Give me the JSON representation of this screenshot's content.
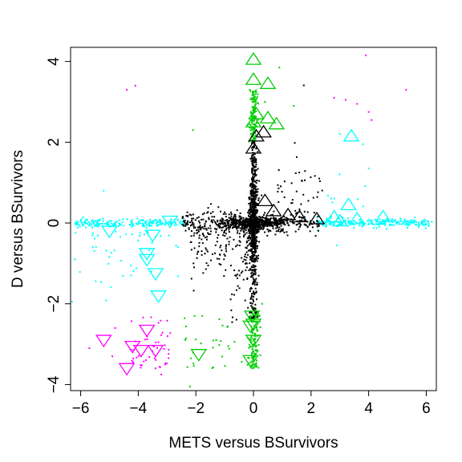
{
  "chart_data": {
    "type": "scatter",
    "title": "",
    "xlabel": "METS versus BSurvivors",
    "ylabel": "D versus BSurvivors",
    "xlim": [
      -6.35,
      6.35
    ],
    "ylim": [
      -4.15,
      4.35
    ],
    "xticks": [
      -6,
      -4,
      -2,
      0,
      2,
      4,
      6
    ],
    "xtick_labels": [
      "−6",
      "−4",
      "−2",
      "0",
      "2",
      "4",
      "6"
    ],
    "yticks": [
      -4,
      -2,
      0,
      2,
      4
    ],
    "ytick_labels": [
      "−4",
      "−2",
      "0",
      "2",
      "4"
    ],
    "grid": false,
    "legend": "none",
    "colors": {
      "black": "#000000",
      "cyan": "#00ffff",
      "green": "#00cd00",
      "magenta": "#ff00ff"
    },
    "series": [
      {
        "color": "cyan",
        "marker": "triangle-up",
        "points": [
          [
            3.4,
            2.15
          ],
          [
            2.8,
            0.15
          ],
          [
            3.0,
            0.05
          ],
          [
            3.3,
            0.45
          ],
          [
            4.5,
            0.15
          ],
          [
            3.6,
            0.1
          ]
        ]
      },
      {
        "color": "cyan",
        "marker": "triangle-down",
        "points": [
          [
            -2.9,
            0.05
          ],
          [
            -5.0,
            -0.2
          ],
          [
            -3.7,
            -0.75
          ],
          [
            -3.4,
            -1.25
          ],
          [
            -3.3,
            -1.8
          ],
          [
            -3.7,
            -0.9
          ],
          [
            -3.5,
            -0.3
          ]
        ]
      },
      {
        "color": "green",
        "marker": "triangle-up",
        "points": [
          [
            0.0,
            4.05
          ],
          [
            0.0,
            3.55
          ],
          [
            0.5,
            3.45
          ],
          [
            0.1,
            2.7
          ],
          [
            0.5,
            2.6
          ],
          [
            0.8,
            2.45
          ],
          [
            0.0,
            2.5
          ]
        ]
      },
      {
        "color": "green",
        "marker": "triangle-down",
        "points": [
          [
            -1.9,
            -3.25
          ],
          [
            -0.1,
            -2.55
          ],
          [
            -0.05,
            -2.3
          ],
          [
            0.0,
            -2.9
          ],
          [
            -0.1,
            -3.4
          ],
          [
            0.0,
            -2.5
          ]
        ]
      },
      {
        "color": "magenta",
        "marker": "triangle-down",
        "points": [
          [
            -5.2,
            -2.9
          ],
          [
            -4.4,
            -3.6
          ],
          [
            -4.2,
            -3.05
          ],
          [
            -3.7,
            -2.65
          ],
          [
            -3.9,
            -3.15
          ],
          [
            -3.4,
            -3.15
          ]
        ]
      },
      {
        "color": "black",
        "marker": "triangle-up",
        "points": [
          [
            0.0,
            1.85
          ],
          [
            0.1,
            2.15
          ],
          [
            0.35,
            2.25
          ],
          [
            0.7,
            0.3
          ],
          [
            1.2,
            0.2
          ],
          [
            1.6,
            0.15
          ],
          [
            2.2,
            0.1
          ],
          [
            0.4,
            0.55
          ]
        ]
      }
    ]
  }
}
